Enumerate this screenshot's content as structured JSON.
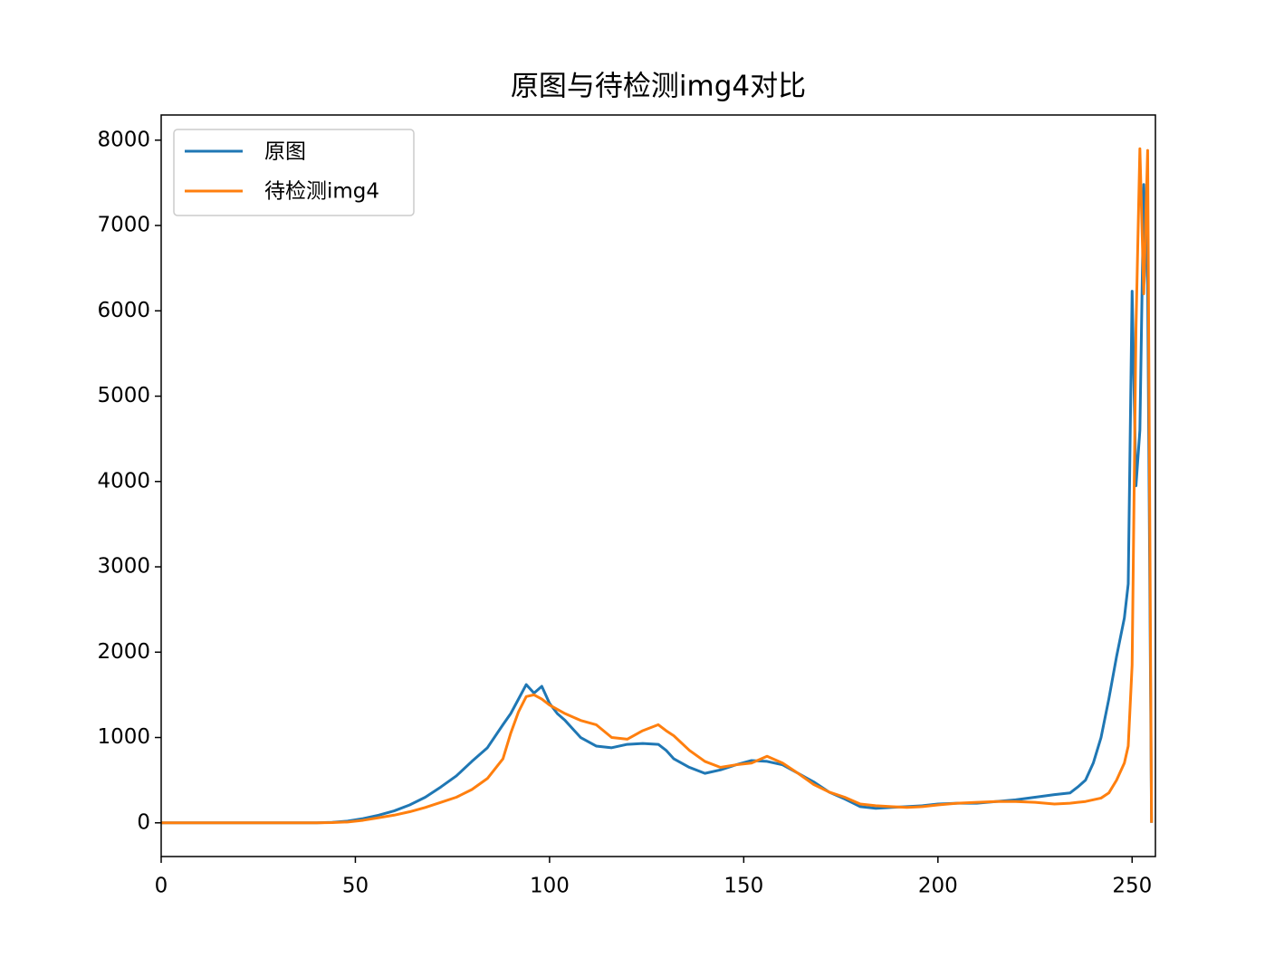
{
  "chart_data": {
    "type": "line",
    "title": "原图与待检测img4对比",
    "x": [
      0,
      10,
      20,
      30,
      40,
      44,
      48,
      52,
      56,
      60,
      64,
      68,
      72,
      76,
      80,
      84,
      88,
      90,
      92,
      94,
      96,
      98,
      100,
      102,
      104,
      108,
      112,
      116,
      120,
      124,
      128,
      130,
      132,
      136,
      140,
      144,
      148,
      152,
      156,
      160,
      164,
      168,
      172,
      176,
      180,
      184,
      188,
      192,
      196,
      200,
      205,
      210,
      215,
      220,
      225,
      230,
      234,
      236,
      238,
      240,
      242,
      244,
      246,
      248,
      249,
      250,
      251,
      252,
      253,
      254,
      255
    ],
    "series": [
      {
        "name": "原图",
        "color": "#1f77b4",
        "values": [
          0,
          0,
          0,
          0,
          0,
          5,
          20,
          50,
          90,
          140,
          210,
          300,
          420,
          550,
          720,
          880,
          1150,
          1280,
          1450,
          1620,
          1520,
          1600,
          1400,
          1280,
          1200,
          1000,
          900,
          880,
          920,
          930,
          920,
          850,
          750,
          650,
          580,
          620,
          680,
          730,
          720,
          680,
          580,
          480,
          360,
          280,
          190,
          170,
          180,
          190,
          200,
          220,
          230,
          230,
          250,
          270,
          300,
          330,
          350,
          420,
          500,
          700,
          1000,
          1450,
          1950,
          2400,
          2800,
          6230,
          3950,
          4600,
          7480,
          6300,
          0
        ]
      },
      {
        "name": "待检测img4",
        "color": "#ff7f0e",
        "values": [
          0,
          0,
          0,
          0,
          0,
          3,
          10,
          30,
          60,
          90,
          130,
          180,
          240,
          300,
          390,
          520,
          750,
          1050,
          1300,
          1480,
          1500,
          1450,
          1380,
          1330,
          1280,
          1200,
          1150,
          1000,
          980,
          1080,
          1150,
          1080,
          1020,
          850,
          720,
          650,
          680,
          700,
          780,
          700,
          580,
          450,
          360,
          300,
          220,
          200,
          190,
          180,
          190,
          210,
          230,
          240,
          250,
          250,
          240,
          220,
          230,
          240,
          250,
          270,
          290,
          350,
          500,
          700,
          900,
          1850,
          5800,
          7900,
          6200,
          7880,
          0
        ]
      }
    ],
    "xlim": [
      0,
      256
    ],
    "ylim": [
      -395,
      8295
    ],
    "xticks": [
      0,
      50,
      100,
      150,
      200,
      250
    ],
    "yticks": [
      0,
      1000,
      2000,
      3000,
      4000,
      5000,
      6000,
      7000,
      8000
    ],
    "legend": "upper left"
  }
}
